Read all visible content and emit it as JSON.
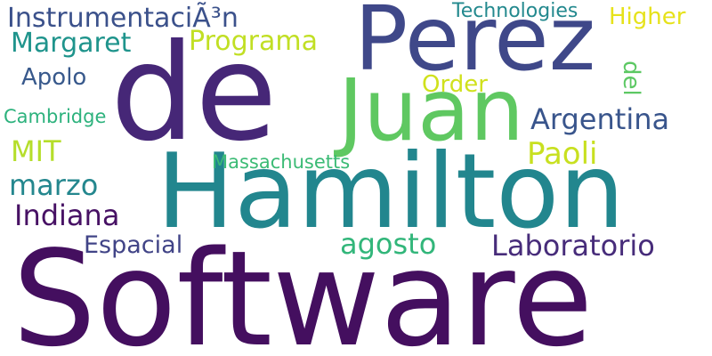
{
  "words": [
    {
      "id": "software",
      "text": "Software",
      "color": "#440f5f"
    },
    {
      "id": "hamilton",
      "text": "Hamilton",
      "color": "#22868e"
    },
    {
      "id": "de",
      "text": "de",
      "color": "#462777"
    },
    {
      "id": "perez",
      "text": "Perez",
      "color": "#3f4889"
    },
    {
      "id": "juan",
      "text": "Juan",
      "color": "#5fc861"
    },
    {
      "id": "instrumentacion",
      "text": "InstrumentaciÃ³n",
      "color": "#3b518b"
    },
    {
      "id": "margaret",
      "text": "Margaret",
      "color": "#1f948c"
    },
    {
      "id": "programa",
      "text": "Programa",
      "color": "#c1df24"
    },
    {
      "id": "technologies",
      "text": "Technologies",
      "color": "#23898e"
    },
    {
      "id": "higher",
      "text": "Higher",
      "color": "#e6e21b"
    },
    {
      "id": "apolo",
      "text": "Apolo",
      "color": "#38598c"
    },
    {
      "id": "order",
      "text": "Order",
      "color": "#d0e11c"
    },
    {
      "id": "del",
      "text": "del",
      "color": "#5cc863"
    },
    {
      "id": "argentina",
      "text": "Argentina",
      "color": "#39558c"
    },
    {
      "id": "cambridge",
      "text": "Cambridge",
      "color": "#2db27d"
    },
    {
      "id": "mit",
      "text": "MIT",
      "color": "#b5de2b"
    },
    {
      "id": "paoli",
      "text": "Paoli",
      "color": "#c8e020"
    },
    {
      "id": "massachusetts",
      "text": "Massachusetts",
      "color": "#3bbb75"
    },
    {
      "id": "marzo",
      "text": "marzo",
      "color": "#24878e"
    },
    {
      "id": "indiana",
      "text": "Indiana",
      "color": "#471164"
    },
    {
      "id": "agosto",
      "text": "agosto",
      "color": "#32b67a"
    },
    {
      "id": "laboratorio",
      "text": "Laboratorio",
      "color": "#472c7a"
    },
    {
      "id": "espacial",
      "text": "Espacial",
      "color": "#414487"
    }
  ]
}
